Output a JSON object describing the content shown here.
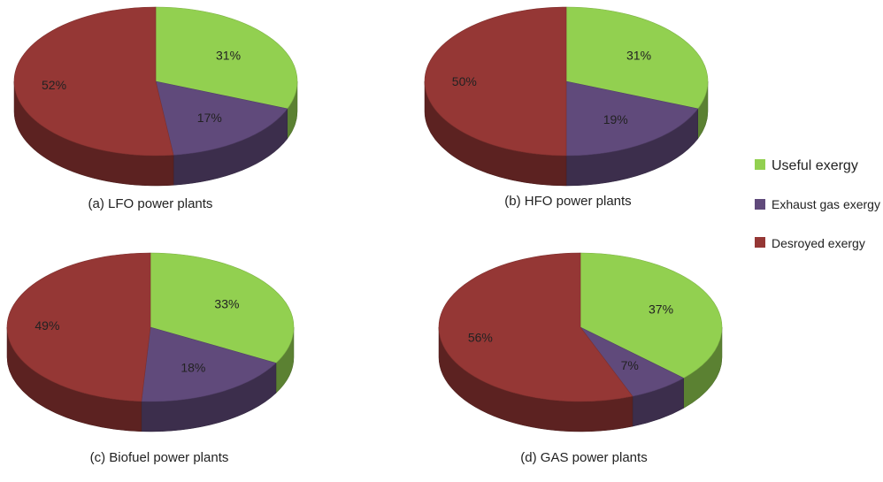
{
  "chart_data": [
    {
      "type": "pie",
      "title": "(a) LFO power plants",
      "categories": [
        "Useful exergy",
        "Exhaust gas exergy",
        "Desroyed exergy"
      ],
      "values": [
        31,
        17,
        52
      ],
      "labels": [
        "31%",
        "17%",
        "52%"
      ]
    },
    {
      "type": "pie",
      "title": "(b) HFO power plants",
      "categories": [
        "Useful exergy",
        "Exhaust gas exergy",
        "Desroyed exergy"
      ],
      "values": [
        31,
        19,
        50
      ],
      "labels": [
        "31%",
        "19%",
        "50%"
      ]
    },
    {
      "type": "pie",
      "title": "(c) Biofuel power plants",
      "categories": [
        "Useful exergy",
        "Exhaust gas exergy",
        "Desroyed exergy"
      ],
      "values": [
        33,
        18,
        49
      ],
      "labels": [
        "33%",
        "18%",
        "49%"
      ]
    },
    {
      "type": "pie",
      "title": "(d) GAS power plants",
      "categories": [
        "Useful exergy",
        "Exhaust gas exergy",
        "Desroyed exergy"
      ],
      "values": [
        37,
        7,
        56
      ],
      "labels": [
        "37%",
        "7%",
        "56%"
      ]
    }
  ],
  "legend": {
    "placement": "right",
    "items": [
      {
        "label": "Useful exergy",
        "color": "#92d050"
      },
      {
        "label": "Exhaust gas exergy",
        "color": "#604a7b"
      },
      {
        "label": "Desroyed exergy",
        "color": "#953735"
      }
    ]
  },
  "colors": {
    "useful": "#92d050",
    "exhaust": "#604a7b",
    "destroyed": "#953735"
  }
}
